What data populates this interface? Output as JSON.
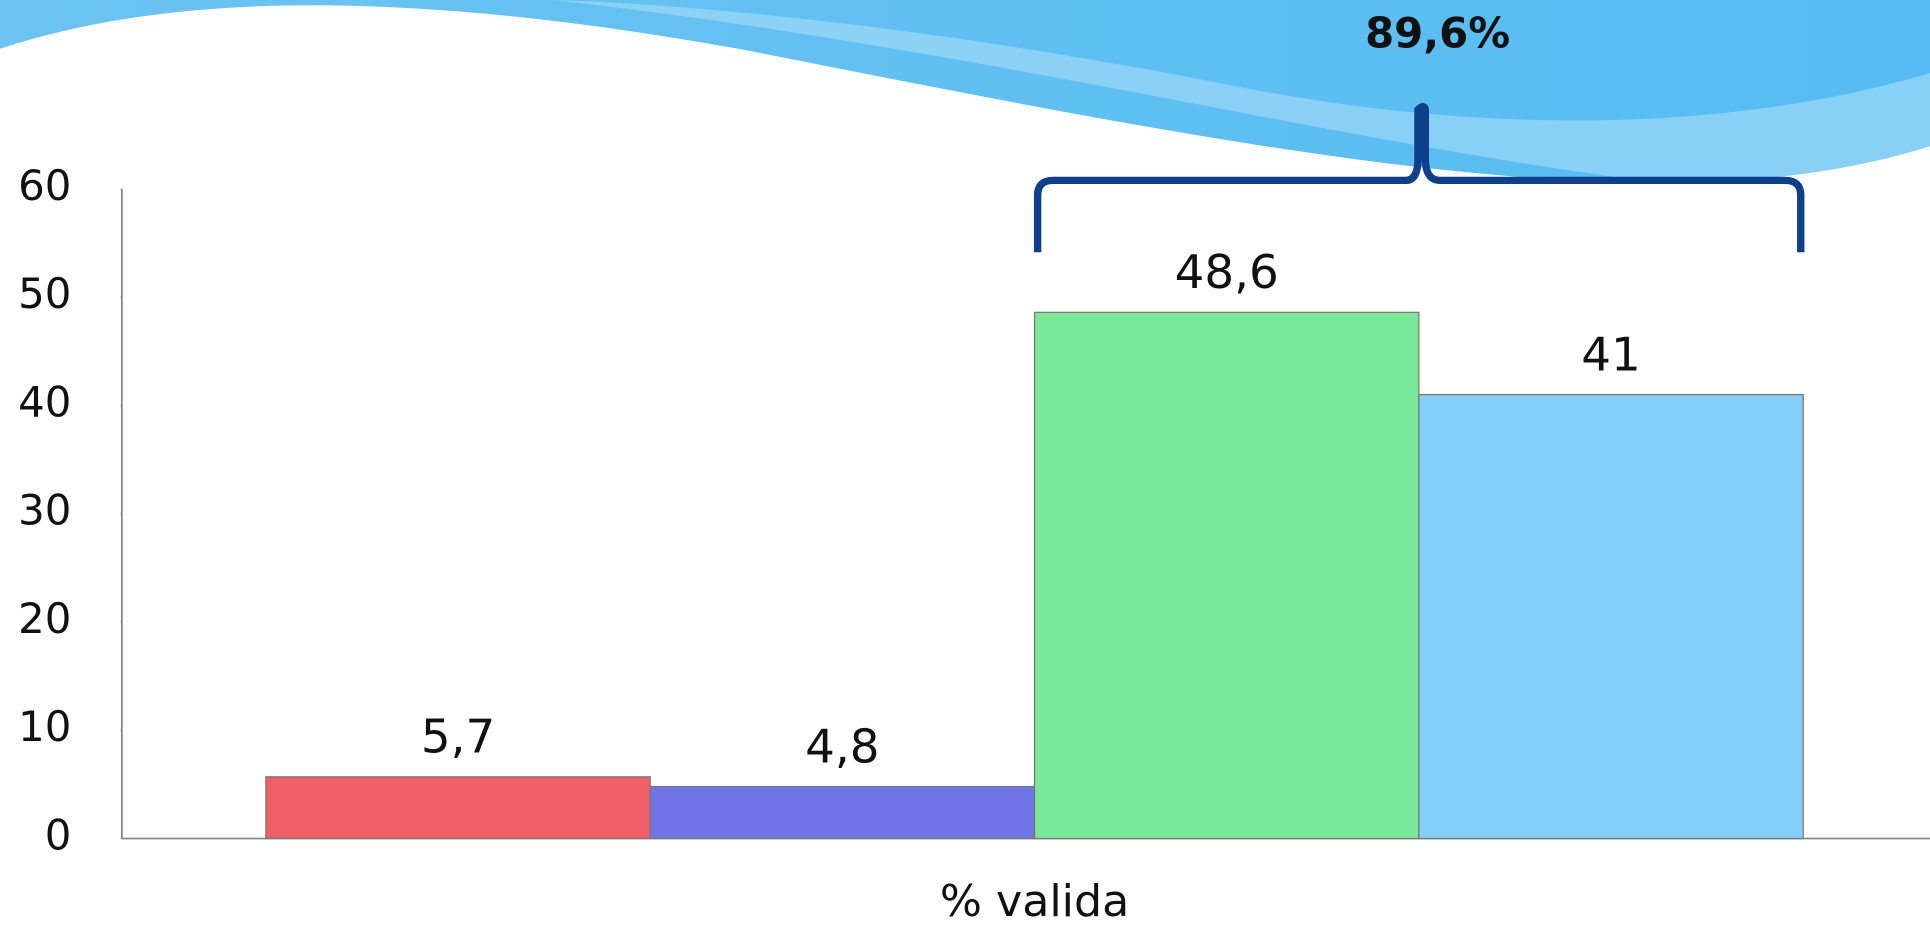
{
  "chart_data": {
    "type": "bar",
    "categories": [
      "% valida"
    ],
    "series": [
      {
        "color": "#f06066",
        "values": [
          5.7
        ],
        "value_labels": [
          "5,7"
        ]
      },
      {
        "color": "#6f74e8",
        "values": [
          4.8
        ],
        "value_labels": [
          "4,8"
        ]
      },
      {
        "color": "#7ae898",
        "values": [
          48.6
        ],
        "value_labels": [
          "48,6"
        ]
      },
      {
        "color": "#82d0fa",
        "values": [
          41
        ]
      }
    ],
    "ylim": [
      0,
      60
    ],
    "yticks": [
      0,
      10,
      20,
      30,
      40,
      50,
      60
    ],
    "annotation": "89,6%"
  }
}
